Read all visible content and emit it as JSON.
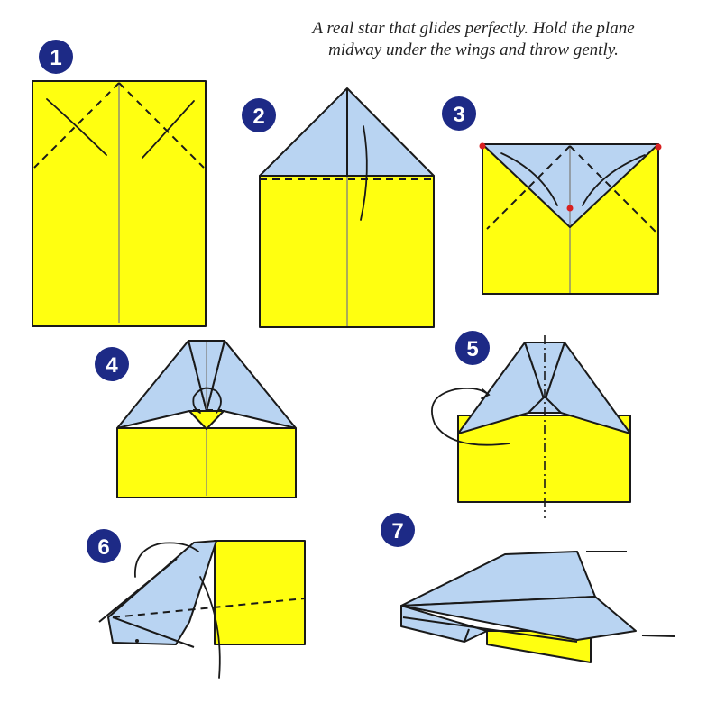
{
  "caption": {
    "line1": "A real star that glides perfectly.  Hold the plane",
    "line2": "midway under the wings and throw gently."
  },
  "steps": [
    "1",
    "2",
    "3",
    "4",
    "5",
    "6",
    "7"
  ],
  "colors": {
    "paper_front": "#ffff10",
    "paper_back": "#b9d4f2",
    "badge": "#1d2a86",
    "marker": "#d82020",
    "line": "#1a1a1a"
  }
}
